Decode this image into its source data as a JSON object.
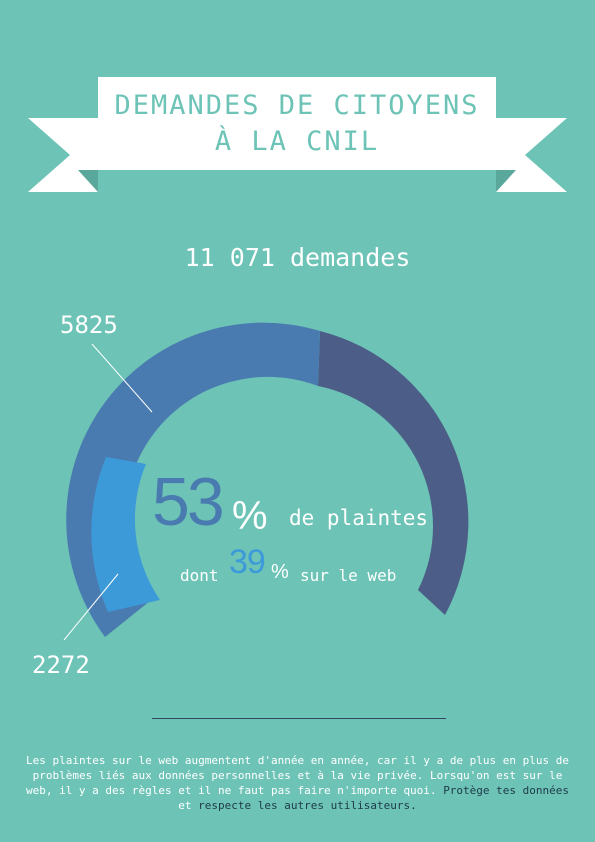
{
  "banner": {
    "line1": "DEMANDES DE CITOYENS",
    "line2": "À LA CNIL"
  },
  "total_label": "11 071 demandes",
  "gauge": {
    "label_top": "5825",
    "label_bottom": "2272",
    "big_percent": "53",
    "percent_symbol": "%",
    "plaintes_text": "de plaintes",
    "dont_text": "dont",
    "web_percent": "39",
    "web_percent_symbol": "%",
    "web_text": "sur le web",
    "colors": {
      "complaints": "#4a7bb0",
      "web": "#3d9ad9",
      "other": "#4c5e87",
      "background": "#6cc3b6"
    }
  },
  "footer": {
    "text": "Les plaintes sur le web augmentent d'année en année, car il y a de plus en plus de problèmes liés aux données personnelles et à la vie privée. Lorsqu'on est sur le web, il y a des règles et il ne faut pas faire n'importe quoi.",
    "highlight1": "Protège tes données",
    "connector": "et",
    "highlight2": "respecte les autres utilisateurs."
  }
}
